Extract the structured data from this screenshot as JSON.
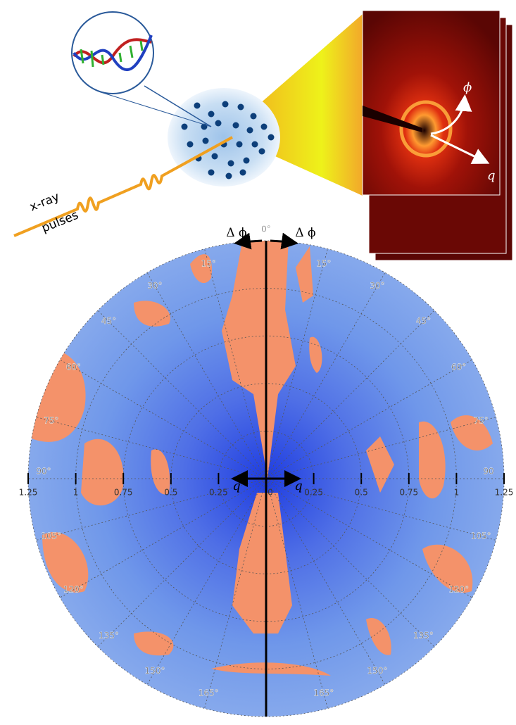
{
  "figure": {
    "beam_label": [
      "x-ray",
      "pulses"
    ],
    "detector": {
      "angle_symbol": "ϕ",
      "radial_symbol": "q"
    },
    "polar_plot": {
      "top_label": "0°",
      "delta_labels": [
        "Δ ϕ",
        "Δ ϕ"
      ],
      "q_labels": [
        "q",
        "q"
      ],
      "left_angle_labels": [
        "15°",
        "30°",
        "45°",
        "60°",
        "75°",
        "90°",
        "105°",
        "120°",
        "135°",
        "150°",
        "165°"
      ],
      "right_angle_labels": [
        "15°",
        "30°",
        "45°",
        "60°",
        "75°",
        "90",
        "105°",
        "120°",
        "135°",
        "150°",
        "165°"
      ],
      "radial_ticks": [
        0,
        0.25,
        0.5,
        0.75,
        1,
        1.25
      ]
    }
  }
}
